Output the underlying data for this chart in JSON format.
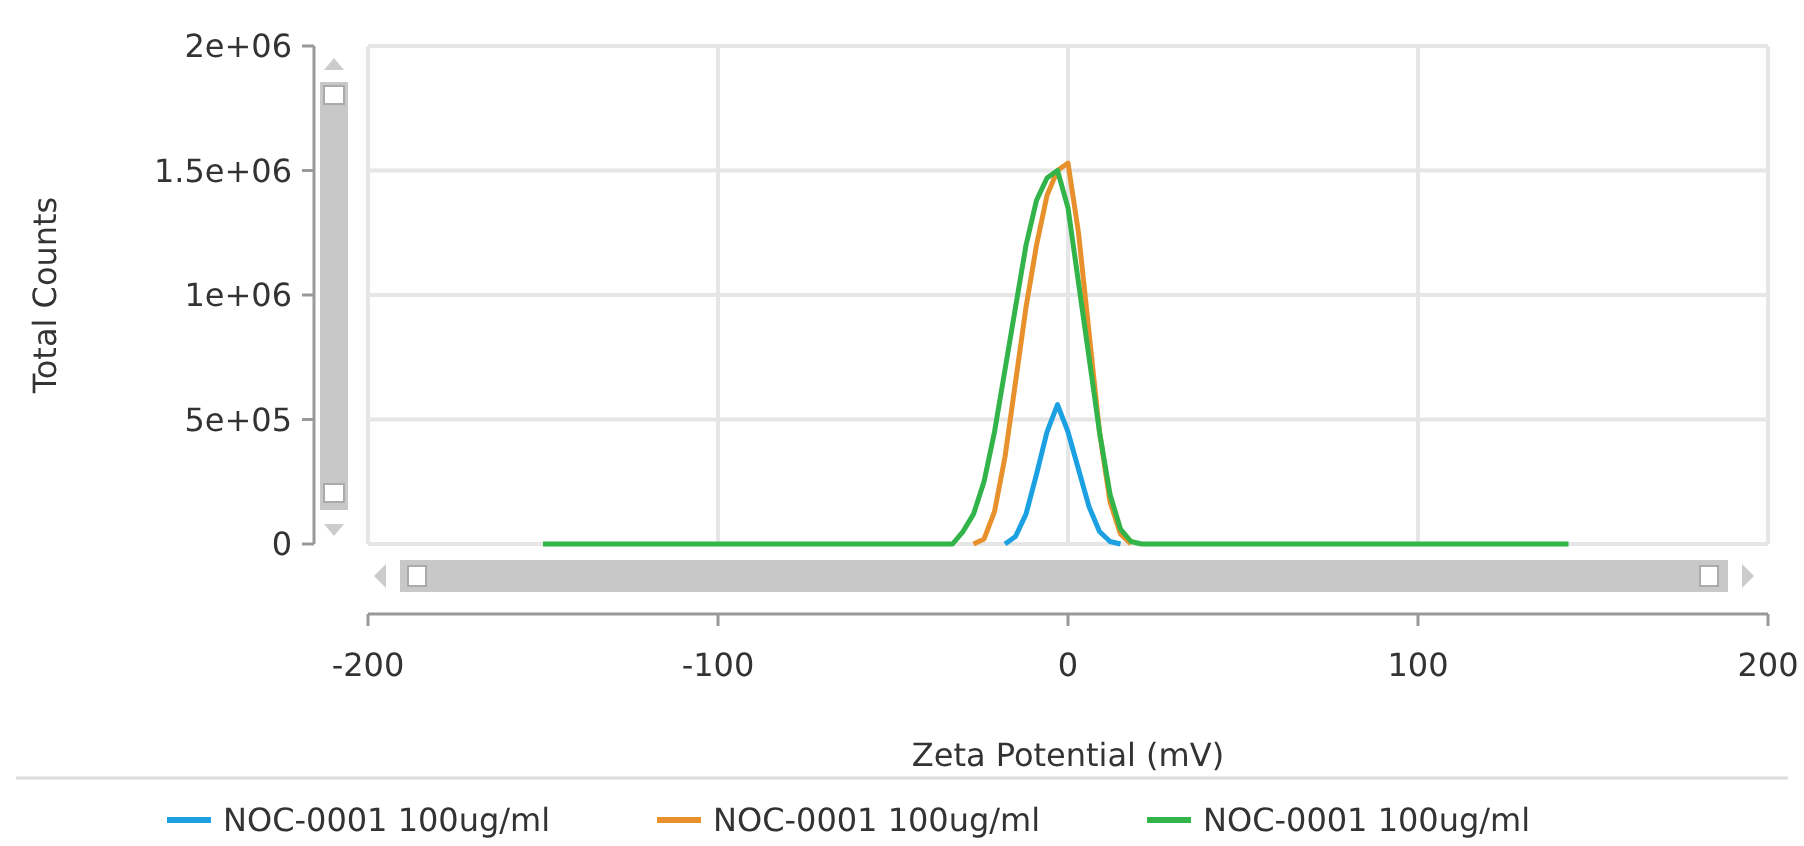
{
  "chart_data": {
    "type": "line",
    "xlabel": "Zeta Potential (mV)",
    "ylabel": "Total Counts",
    "xlim": [
      -200,
      200
    ],
    "xticks": [
      -200,
      -100,
      0,
      100,
      200
    ],
    "ylim": [
      0,
      2000000
    ],
    "yticks": [
      0,
      {
        "value": 500000,
        "label": "5e+05"
      },
      {
        "value": 1000000,
        "label": "1e+06"
      },
      {
        "value": 1500000,
        "label": "1.5e+06"
      },
      {
        "value": 2000000,
        "label": "2e+06"
      }
    ],
    "grid": true,
    "legend": "bottom",
    "marker": "none",
    "line_style": "solid",
    "series": [
      {
        "name": "NOC-0001 100ug/ml",
        "color": "#1ba1e2",
        "x": [
          -18,
          -15,
          -12,
          -9,
          -6,
          -3,
          0,
          3,
          6,
          9,
          12,
          15
        ],
        "values": [
          0,
          30000,
          120000,
          280000,
          450000,
          560000,
          450000,
          300000,
          150000,
          50000,
          10000,
          0
        ]
      },
      {
        "name": "NOC-0001 100ug/ml",
        "color": "#e8912c",
        "x": [
          -27,
          -24,
          -21,
          -18,
          -15,
          -12,
          -9,
          -6,
          -3,
          0,
          3,
          6,
          9,
          12,
          15,
          18
        ],
        "values": [
          0,
          20000,
          130000,
          350000,
          650000,
          950000,
          1200000,
          1400000,
          1500000,
          1530000,
          1250000,
          850000,
          450000,
          170000,
          40000,
          0
        ]
      },
      {
        "name": "NOC-0001 100ug/ml",
        "color": "#33b44a",
        "x": [
          -150,
          -33,
          -30,
          -27,
          -24,
          -21,
          -18,
          -15,
          -12,
          -9,
          -6,
          -3,
          0,
          3,
          6,
          9,
          12,
          15,
          18,
          21,
          143
        ],
        "values": [
          0,
          0,
          50000,
          120000,
          250000,
          450000,
          700000,
          950000,
          1200000,
          1380000,
          1470000,
          1500000,
          1350000,
          1050000,
          750000,
          450000,
          200000,
          60000,
          10000,
          0,
          0
        ]
      }
    ]
  }
}
